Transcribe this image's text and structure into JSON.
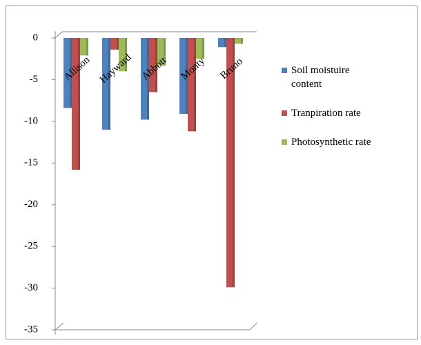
{
  "chart_data": {
    "type": "bar",
    "categories": [
      "Allison",
      "Hayward",
      "Abbott",
      "Monty",
      "Bruno"
    ],
    "series": [
      {
        "name": "Soil moistuire content",
        "color": "#4f81bd",
        "values": [
          -8.4,
          -11,
          -9.8,
          -9.1,
          -1.1
        ]
      },
      {
        "name": "Tranpiration rate",
        "color": "#c0504d",
        "values": [
          -15.8,
          -1.4,
          -6.5,
          -11.2,
          -29.9
        ]
      },
      {
        "name": "Photosynthetic rate",
        "color": "#9bbb59",
        "values": [
          -2.1,
          -4,
          -3.3,
          -2.5,
          -0.7
        ]
      }
    ],
    "ylim": [
      -35,
      0
    ],
    "yticks": [
      0,
      -5,
      -10,
      -15,
      -20,
      -25,
      -30,
      -35
    ],
    "grid": false,
    "legend": "right"
  }
}
